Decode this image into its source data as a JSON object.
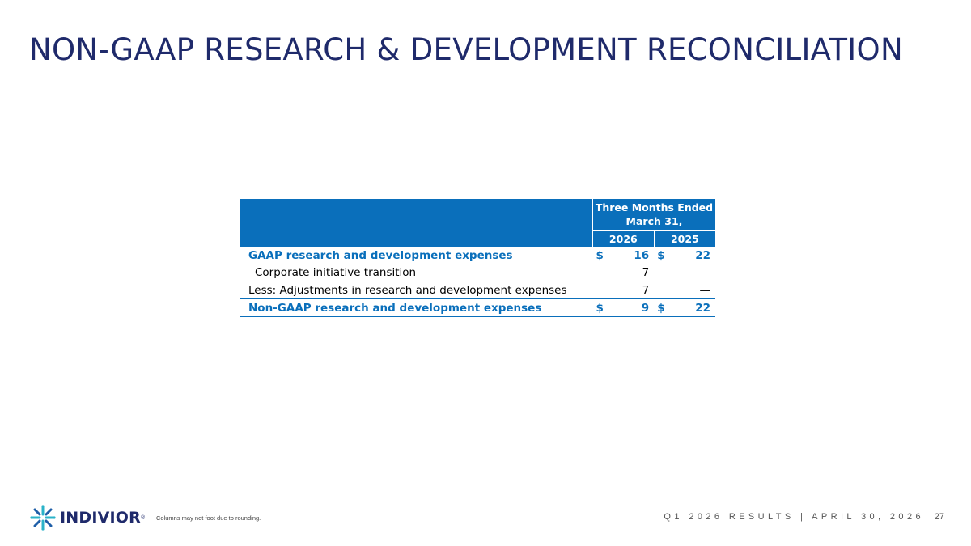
{
  "slide": {
    "title": "NON-GAAP RESEARCH & DEVELOPMENT RECONCILIATION"
  },
  "table": {
    "period_header_line1": "Three Months Ended",
    "period_header_line2": "March 31,",
    "col_2026": "2026",
    "col_2025": "2025",
    "rows": [
      {
        "label": "GAAP research and development expenses",
        "cur_a": "$",
        "val_a": "16",
        "cur_b": "$",
        "val_b": "22"
      },
      {
        "label": "Corporate initiative transition",
        "cur_a": "",
        "val_a": "7",
        "cur_b": "",
        "val_b": "—"
      },
      {
        "label": "Less: Adjustments in research and development expenses",
        "cur_a": "",
        "val_a": "7",
        "cur_b": "",
        "val_b": "—"
      },
      {
        "label": "Non-GAAP research and development expenses",
        "cur_a": "$",
        "val_a": "9",
        "cur_b": "$",
        "val_b": "22"
      }
    ]
  },
  "footer": {
    "logo_text": "INDIVIOR",
    "logo_mark": "®",
    "footnote": "Columns may not foot due to rounding.",
    "event": "Q1 2026 RESULTS | APRIL 30, 2026",
    "page": "27"
  },
  "colors": {
    "title": "#1f2a6b",
    "accent_blue": "#0a6fbb",
    "logo_teal": "#2bb3c9"
  }
}
